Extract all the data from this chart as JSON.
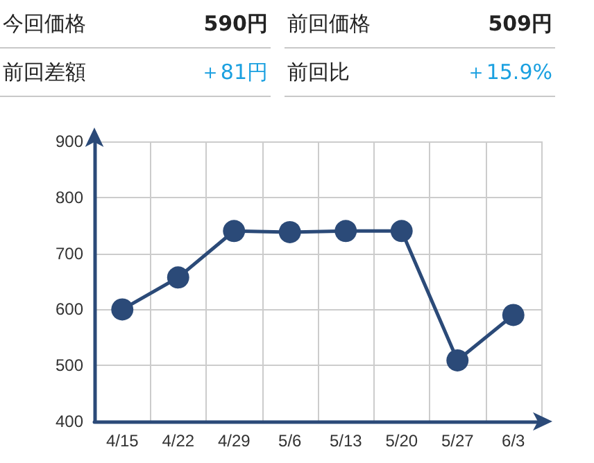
{
  "chart_data": {
    "type": "line",
    "annotations": [
      "今回価格",
      "590円",
      "前回価格",
      "509円",
      "前回差額",
      "＋81円",
      "前回比",
      "＋15.9%"
    ],
    "categories": [
      "4/15",
      "4/22",
      "4/29",
      "5/6",
      "5/13",
      "5/20",
      "5/27",
      "6/3"
    ],
    "series": [
      {
        "color": "#2b4a78",
        "values": [
          600,
          657,
          740,
          738,
          740,
          740,
          509,
          590
        ]
      }
    ],
    "ylim": [
      400,
      900
    ],
    "yticks": [
      400,
      500,
      600,
      700,
      800,
      900
    ],
    "grid": true,
    "marker": "circle",
    "line_style": "solid"
  }
}
